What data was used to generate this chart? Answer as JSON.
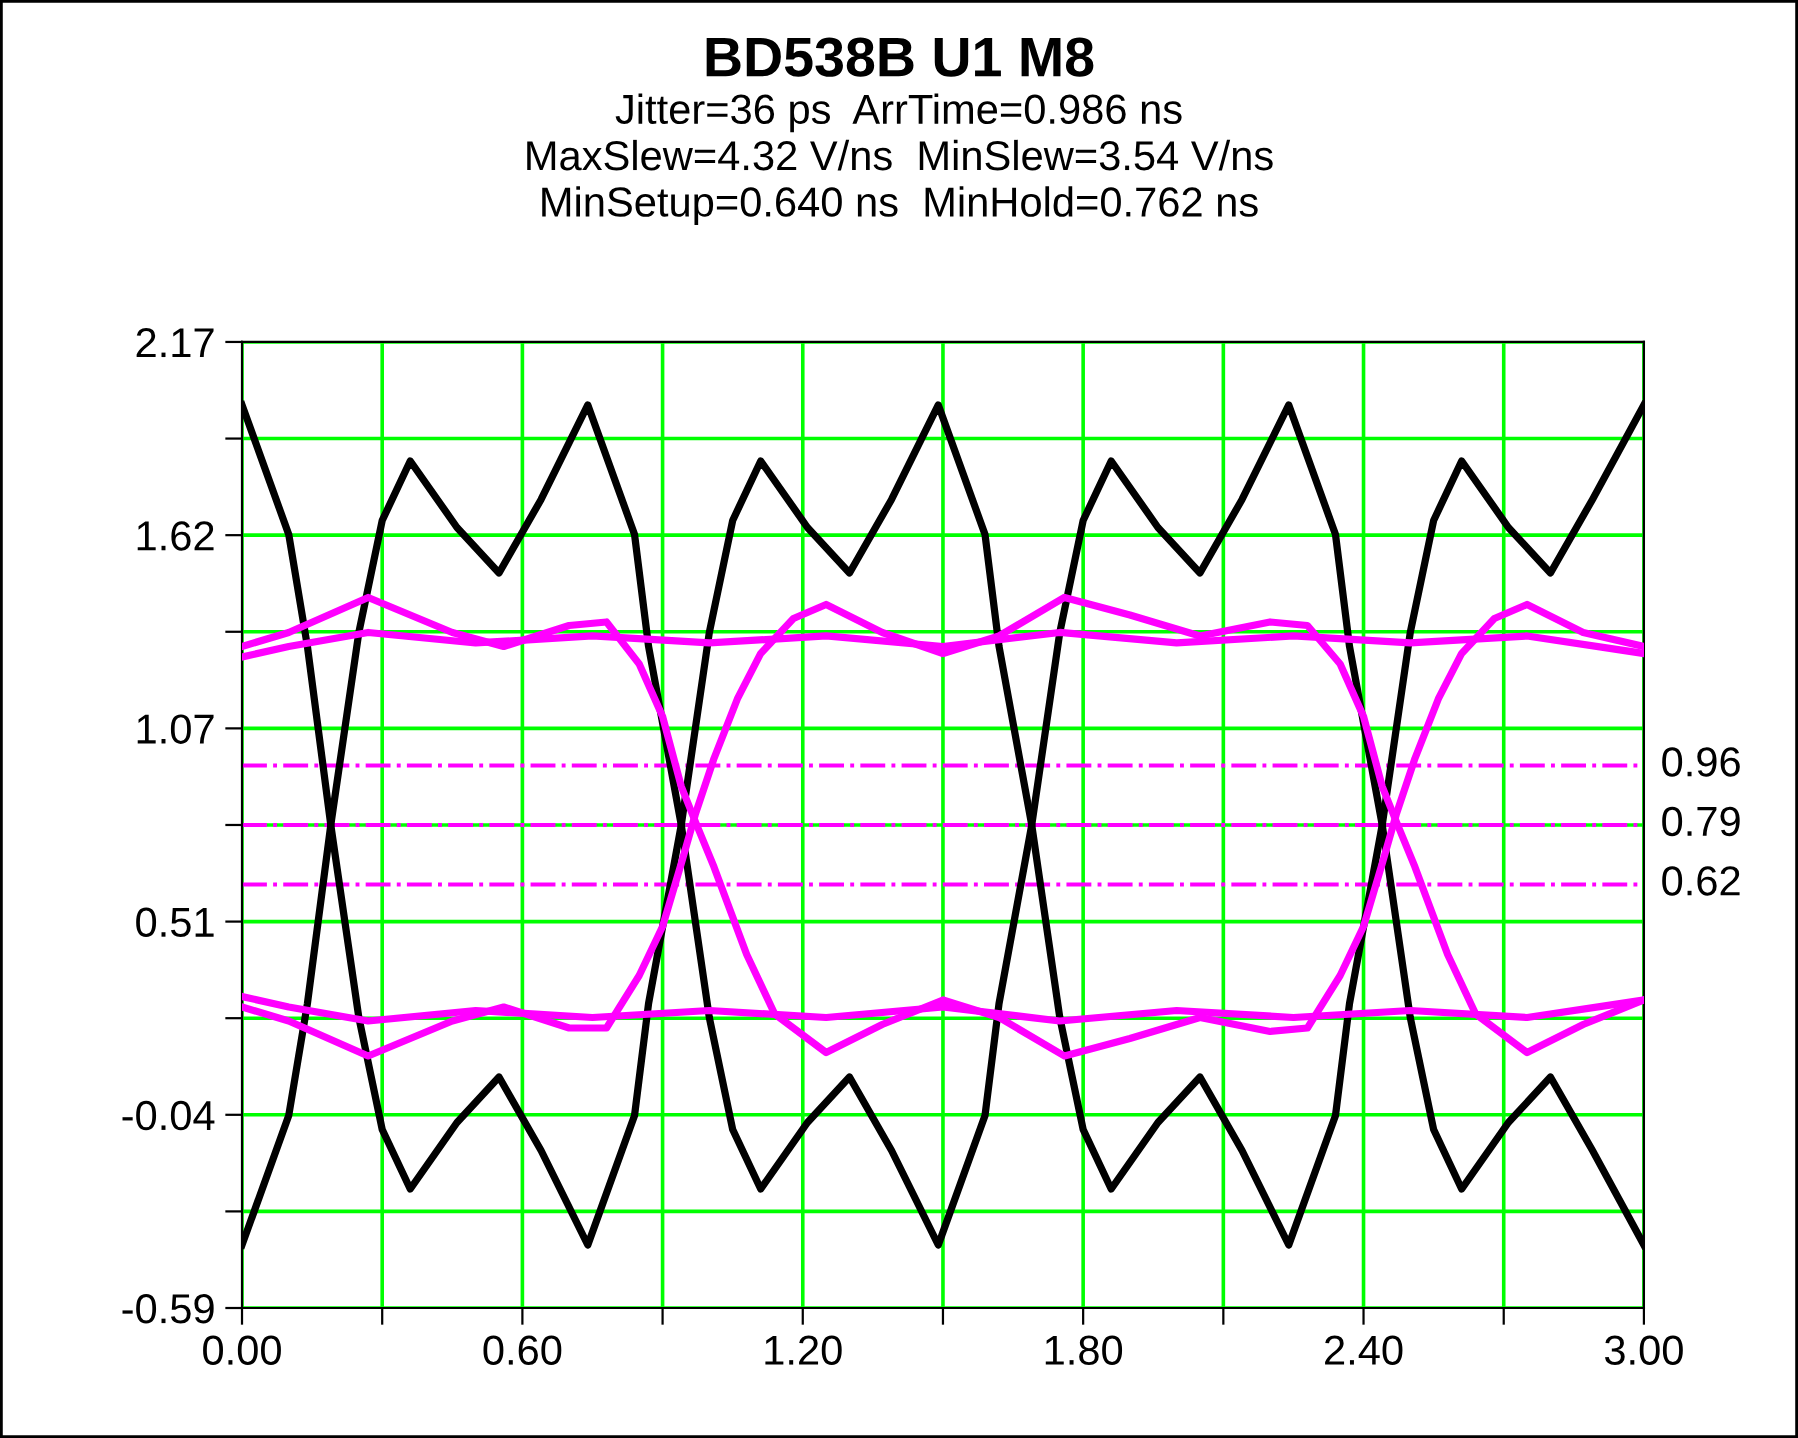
{
  "chart_data": {
    "type": "line",
    "title": "BD538B U1 M8",
    "subtitle": "Jitter=36 ps  ArrTime=0.986 ns\nMaxSlew=4.32 V/ns  MinSlew=3.54 V/ns\nMinSetup=0.640 ns  MinHold=0.762 ns",
    "xlim": [
      0,
      3
    ],
    "ylim": [
      -0.59,
      2.17
    ],
    "xticks": [
      {
        "value": 0,
        "label": "0.00"
      },
      {
        "value": 0.3,
        "label": null
      },
      {
        "value": 0.6,
        "label": "0.60"
      },
      {
        "value": 0.9,
        "label": null
      },
      {
        "value": 1.2,
        "label": "1.20"
      },
      {
        "value": 1.5,
        "label": null
      },
      {
        "value": 1.8,
        "label": "1.80"
      },
      {
        "value": 2.1,
        "label": null
      },
      {
        "value": 2.4,
        "label": "2.40"
      },
      {
        "value": 2.7,
        "label": null
      },
      {
        "value": 3.0,
        "label": "3.00"
      }
    ],
    "yticks": [
      {
        "value": -0.59,
        "label": "-0.59"
      },
      {
        "value": -0.314,
        "label": null
      },
      {
        "value": -0.038,
        "label": "-0.04"
      },
      {
        "value": 0.238,
        "label": null
      },
      {
        "value": 0.514,
        "label": "0.51"
      },
      {
        "value": 0.79,
        "label": null
      },
      {
        "value": 1.066,
        "label": "1.07"
      },
      {
        "value": 1.342,
        "label": null
      },
      {
        "value": 1.618,
        "label": "1.62"
      },
      {
        "value": 1.894,
        "label": null
      },
      {
        "value": 2.17,
        "label": "2.17"
      }
    ],
    "grid": true,
    "legend": false,
    "marker": "none",
    "line_style": "solid",
    "series": [
      {
        "color": "#000000",
        "x": [
          0,
          0.1,
          0.14,
          0.19,
          0.25,
          0.3,
          0.36,
          0.46,
          0.55,
          0.64,
          0.74,
          0.84,
          0.87,
          0.94,
          1.0,
          1.05,
          1.11,
          1.21,
          1.3,
          1.39,
          1.49,
          1.59,
          1.62,
          1.69,
          1.75,
          1.8,
          1.86,
          1.96,
          2.05,
          2.14,
          2.24,
          2.34,
          2.37,
          2.44,
          2.5,
          2.55,
          2.61,
          2.71,
          2.8,
          2.89,
          3.0
        ],
        "values": [
          1.99,
          1.62,
          1.3,
          0.79,
          0.24,
          -0.08,
          -0.25,
          -0.06,
          0.07,
          -0.14,
          -0.41,
          -0.04,
          0.28,
          0.79,
          1.34,
          1.66,
          1.83,
          1.64,
          1.51,
          1.72,
          1.99,
          1.62,
          1.3,
          0.79,
          0.24,
          -0.08,
          -0.25,
          -0.06,
          0.07,
          -0.14,
          -0.41,
          -0.04,
          0.28,
          0.79,
          1.34,
          1.66,
          1.83,
          1.64,
          1.51,
          1.72,
          1.99
        ]
      },
      {
        "color": "#000000",
        "x": [
          0,
          0.1,
          0.14,
          0.19,
          0.25,
          0.3,
          0.36,
          0.46,
          0.55,
          0.64,
          0.74,
          0.84,
          0.87,
          0.94,
          1.0,
          1.05,
          1.11,
          1.21,
          1.3,
          1.39,
          1.49,
          1.59,
          1.62,
          1.69,
          1.75,
          1.8,
          1.86,
          1.96,
          2.05,
          2.14,
          2.24,
          2.34,
          2.37,
          2.44,
          2.5,
          2.55,
          2.61,
          2.71,
          2.8,
          2.89,
          3.0
        ],
        "values": [
          -0.41,
          -0.04,
          0.28,
          0.79,
          1.34,
          1.66,
          1.83,
          1.64,
          1.51,
          1.72,
          1.99,
          1.62,
          1.3,
          0.79,
          0.24,
          -0.08,
          -0.25,
          -0.06,
          0.07,
          -0.14,
          -0.41,
          -0.04,
          0.28,
          0.79,
          1.34,
          1.66,
          1.83,
          1.64,
          1.51,
          1.72,
          1.99,
          1.62,
          1.3,
          0.79,
          0.24,
          -0.08,
          -0.25,
          -0.06,
          0.07,
          -0.14,
          -0.41
        ]
      },
      {
        "color": "#ff00ff",
        "x": [
          0,
          0.1,
          0.27,
          0.45,
          0.56,
          0.7,
          0.78,
          0.85,
          0.9,
          0.94,
          0.97,
          1.01,
          1.08,
          1.14,
          1.25,
          1.37,
          1.5,
          1.62,
          1.76,
          1.9,
          2.05,
          2.2,
          2.28,
          2.35,
          2.4,
          2.44,
          2.47,
          2.51,
          2.56,
          2.61,
          2.68,
          2.75,
          2.87,
          3.0
        ],
        "values": [
          1.3,
          1.34,
          1.44,
          1.34,
          1.3,
          1.36,
          1.37,
          1.25,
          1.1,
          0.9,
          0.8,
          0.67,
          0.42,
          0.25,
          0.14,
          0.22,
          0.29,
          0.24,
          0.13,
          0.18,
          0.24,
          0.2,
          0.21,
          0.36,
          0.5,
          0.68,
          0.82,
          0.98,
          1.15,
          1.28,
          1.38,
          1.42,
          1.34,
          1.3
        ]
      },
      {
        "color": "#ff00ff",
        "x": [
          0,
          0.1,
          0.27,
          0.45,
          0.56,
          0.7,
          0.78,
          0.85,
          0.9,
          0.94,
          0.97,
          1.01,
          1.06,
          1.11,
          1.18,
          1.25,
          1.37,
          1.5,
          1.62,
          1.76,
          1.9,
          2.05,
          2.2,
          2.28,
          2.35,
          2.4,
          2.44,
          2.47,
          2.51,
          2.58,
          2.64,
          2.75,
          2.87,
          3.0
        ],
        "values": [
          0.27,
          0.23,
          0.13,
          0.23,
          0.27,
          0.21,
          0.21,
          0.36,
          0.5,
          0.68,
          0.82,
          0.98,
          1.15,
          1.28,
          1.38,
          1.42,
          1.34,
          1.28,
          1.33,
          1.44,
          1.39,
          1.33,
          1.37,
          1.36,
          1.25,
          1.1,
          0.9,
          0.8,
          0.67,
          0.42,
          0.25,
          0.14,
          0.22,
          0.29
        ]
      },
      {
        "color": "#ff00ff",
        "x": [
          0,
          0.1,
          0.27,
          0.5,
          0.75,
          1.0,
          1.25,
          1.5,
          1.75,
          2.0,
          2.25,
          2.5,
          2.75,
          3.0
        ],
        "values": [
          1.27,
          1.3,
          1.34,
          1.31,
          1.33,
          1.31,
          1.33,
          1.3,
          1.34,
          1.31,
          1.33,
          1.31,
          1.33,
          1.28
        ]
      },
      {
        "color": "#ff00ff",
        "x": [
          0,
          0.1,
          0.27,
          0.5,
          0.75,
          1.0,
          1.25,
          1.5,
          1.75,
          2.0,
          2.25,
          2.5,
          2.75,
          3.0
        ],
        "values": [
          0.3,
          0.27,
          0.23,
          0.26,
          0.24,
          0.26,
          0.24,
          0.27,
          0.23,
          0.26,
          0.24,
          0.26,
          0.24,
          0.29
        ]
      }
    ],
    "ref_lines": [
      {
        "axis": "y",
        "value": 0.96,
        "label": "0.96",
        "color": "#ff00ff",
        "line_style": "dashdot"
      },
      {
        "axis": "y",
        "value": 0.79,
        "label": "0.79",
        "color": "#ff00ff",
        "line_style": "dashdot"
      },
      {
        "axis": "y",
        "value": 0.62,
        "label": "0.62",
        "color": "#ff00ff",
        "line_style": "dashdot"
      }
    ]
  }
}
